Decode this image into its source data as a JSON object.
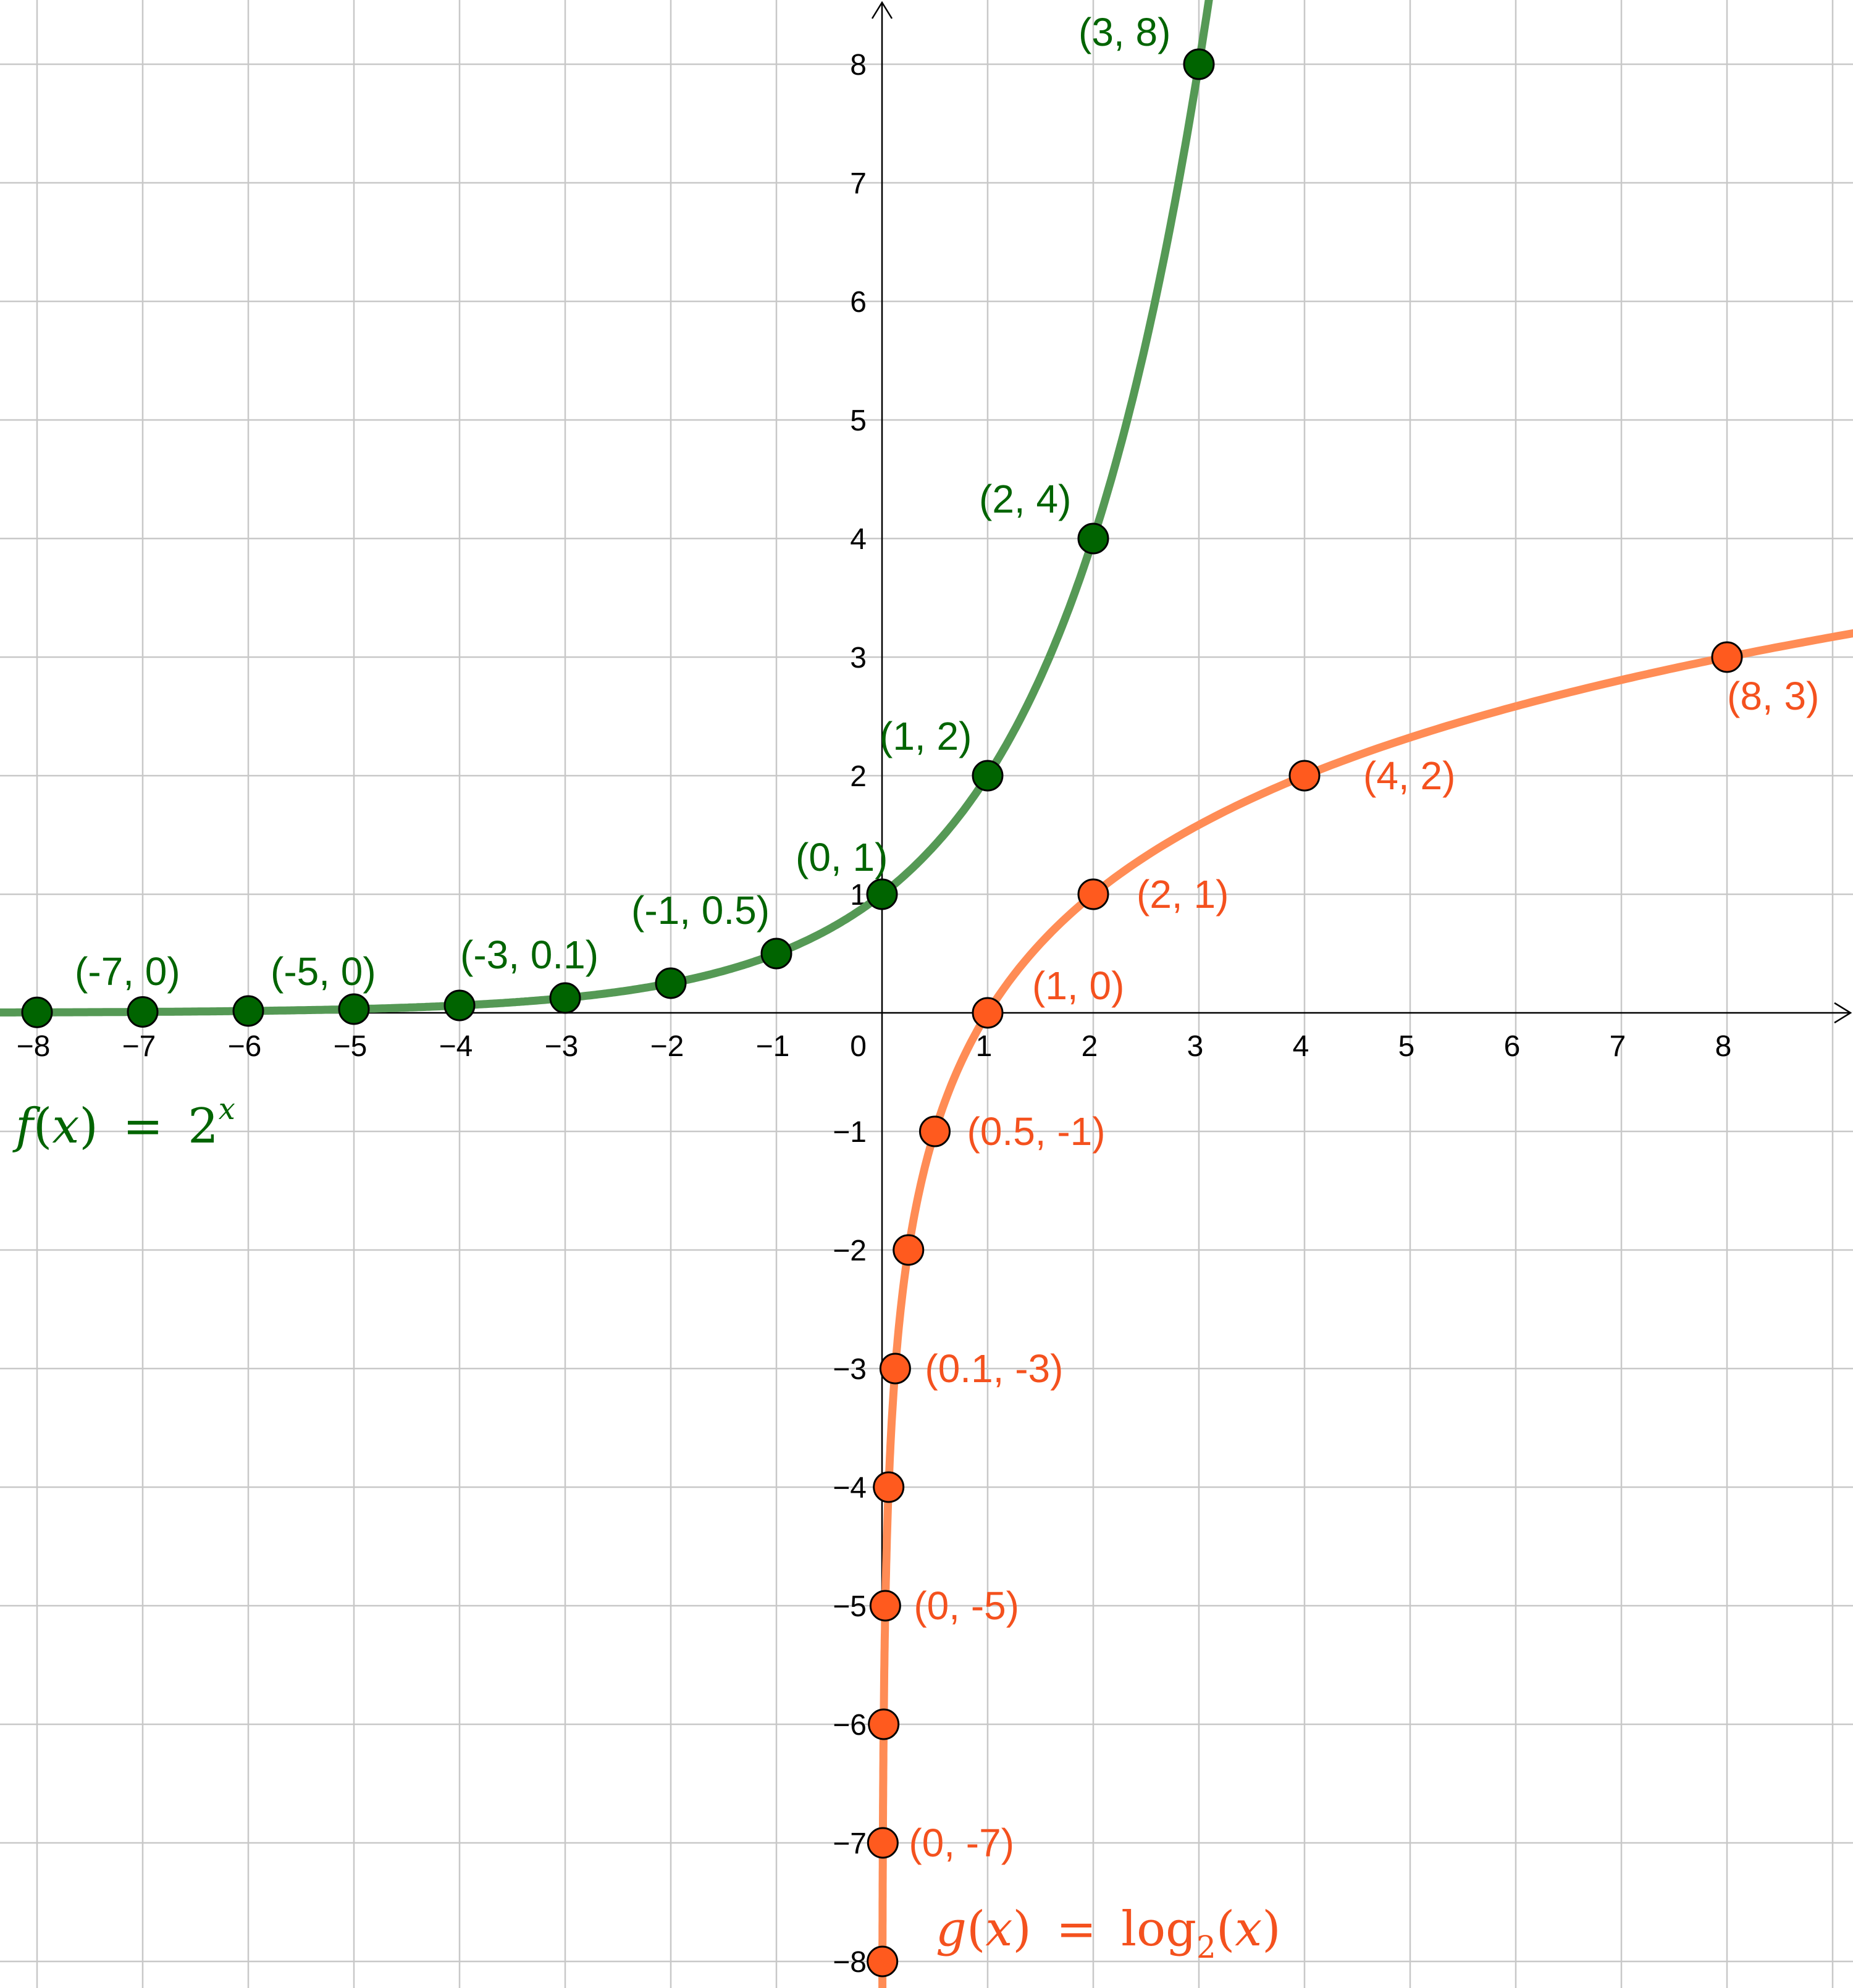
{
  "chart_data": {
    "type": "line",
    "xlim": [
      -8.35,
      9.2
    ],
    "ylim": [
      -8.3,
      8.5
    ],
    "grid": true,
    "x_ticks": [
      -8,
      -7,
      -6,
      -5,
      -4,
      -3,
      -2,
      -1,
      1,
      2,
      3,
      4,
      5,
      6,
      7,
      8
    ],
    "y_ticks": [
      -8,
      -7,
      -6,
      -5,
      -4,
      -3,
      -2,
      -1,
      1,
      2,
      3,
      4,
      5,
      6,
      7,
      8
    ],
    "x_tick_labels": [
      "−8",
      "−7",
      "−6",
      "−5",
      "−4",
      "−3",
      "−2",
      "−1",
      "1",
      "2",
      "3",
      "4",
      "5",
      "6",
      "7",
      "8"
    ],
    "y_tick_labels": [
      "−8",
      "−7",
      "−6",
      "−5",
      "−4",
      "−3",
      "−2",
      "−1",
      "1",
      "2",
      "3",
      "4",
      "5",
      "6",
      "7",
      "8"
    ],
    "origin_label": "0",
    "series": [
      {
        "name": "f(x) = 2^x",
        "function": "exp2",
        "color": "#559955",
        "point_color": "#006400",
        "label_color": "#006400",
        "points": [
          {
            "x": -8,
            "y": 0.0039
          },
          {
            "x": -7,
            "y": 0.0078
          },
          {
            "x": -6,
            "y": 0.0156
          },
          {
            "x": -5,
            "y": 0.03125
          },
          {
            "x": -4,
            "y": 0.0625
          },
          {
            "x": -3,
            "y": 0.125
          },
          {
            "x": -2,
            "y": 0.25
          },
          {
            "x": -1,
            "y": 0.5
          },
          {
            "x": 0,
            "y": 1
          },
          {
            "x": 1,
            "y": 2
          },
          {
            "x": 2,
            "y": 4
          },
          {
            "x": 3,
            "y": 8
          }
        ],
        "labels": [
          {
            "text": "(-7, 0)",
            "x": -7,
            "y": 0
          },
          {
            "text": "(-5, 0)",
            "x": -5,
            "y": 0
          },
          {
            "text": "(-3, 0.1)",
            "x": -3,
            "y": 0.125
          },
          {
            "text": "(-1, 0.5)",
            "x": -1,
            "y": 0.5
          },
          {
            "text": "(0, 1)",
            "x": 0,
            "y": 1
          },
          {
            "text": "(1, 2)",
            "x": 1,
            "y": 2
          },
          {
            "text": "(2, 4)",
            "x": 2,
            "y": 4
          },
          {
            "text": "(3, 8)",
            "x": 3,
            "y": 8
          }
        ]
      },
      {
        "name": "g(x) = log2(x)",
        "function": "log2",
        "color": "#ff8c55",
        "point_color": "#ff5a1e",
        "label_color": "#f4511e",
        "points": [
          {
            "x": 0.0039,
            "y": -8
          },
          {
            "x": 0.0078,
            "y": -7
          },
          {
            "x": 0.0156,
            "y": -6
          },
          {
            "x": 0.03125,
            "y": -5
          },
          {
            "x": 0.0625,
            "y": -4
          },
          {
            "x": 0.125,
            "y": -3
          },
          {
            "x": 0.25,
            "y": -2
          },
          {
            "x": 0.5,
            "y": -1
          },
          {
            "x": 1,
            "y": 0
          },
          {
            "x": 2,
            "y": 1
          },
          {
            "x": 4,
            "y": 2
          },
          {
            "x": 8,
            "y": 3
          }
        ],
        "labels": [
          {
            "text": "(0, -7)",
            "x": 0.0078,
            "y": -7
          },
          {
            "text": "(0, -5)",
            "x": 0.03125,
            "y": -5
          },
          {
            "text": "(0.1, -3)",
            "x": 0.125,
            "y": -3
          },
          {
            "text": "(0.5, -1)",
            "x": 0.5,
            "y": -1
          },
          {
            "text": "(1, 0)",
            "x": 1,
            "y": 0
          },
          {
            "text": "(2, 1)",
            "x": 2,
            "y": 1
          },
          {
            "text": "(4, 2)",
            "x": 4,
            "y": 2
          },
          {
            "text": "(8, 3)",
            "x": 8,
            "y": 3
          }
        ]
      }
    ],
    "equations": {
      "f": {
        "fn": "f",
        "var": "x",
        "eq": "=",
        "base": "2",
        "power": "x"
      },
      "g": {
        "fn": "g",
        "var": "x",
        "eq": "=",
        "log": "log",
        "sub": "2",
        "arg": "x"
      }
    }
  }
}
